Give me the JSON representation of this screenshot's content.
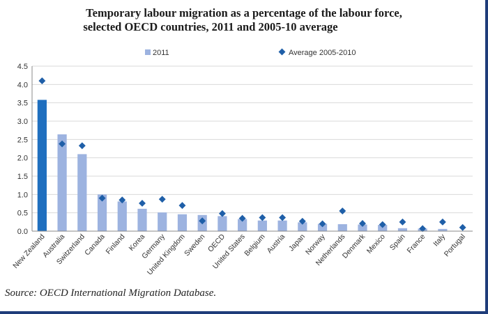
{
  "chart_data": {
    "type": "bar",
    "title_line1": "Temporary labour migration as a percentage of the labour force,",
    "title_line2": "selected OECD countries, 2011 and 2005-10 average",
    "ylim": [
      0,
      4.5
    ],
    "yticks": [
      "0.0",
      "0.5",
      "1.0",
      "1.5",
      "2.0",
      "2.5",
      "3.0",
      "3.5",
      "4.0",
      "4.5"
    ],
    "categories": [
      "New Zealand",
      "Australia",
      "Switzerland",
      "Canada",
      "Finland",
      "Korea",
      "Germany",
      "United Kingdom",
      "Sweden",
      "OECD",
      "United States",
      "Belgium",
      "Austria",
      "Japan",
      "Norway",
      "Netherlands",
      "Denmark",
      "Mexico",
      "Spain",
      "France",
      "Italy",
      "Portugal"
    ],
    "series": [
      {
        "name": "2011",
        "type": "bar",
        "color": "#9db3e0",
        "highlight_color": "#1f6fbf",
        "values": [
          3.58,
          2.64,
          2.1,
          1.0,
          0.81,
          0.61,
          0.51,
          0.46,
          0.44,
          0.41,
          0.33,
          0.29,
          0.29,
          0.24,
          0.2,
          0.19,
          0.18,
          0.17,
          0.08,
          0.07,
          0.06,
          0.0
        ]
      },
      {
        "name": "Average 2005-2010",
        "type": "marker",
        "color": "#1f5fa8",
        "values": [
          4.1,
          2.38,
          2.33,
          0.9,
          0.85,
          0.76,
          0.87,
          0.7,
          0.28,
          0.48,
          0.35,
          0.37,
          0.37,
          0.27,
          0.2,
          0.55,
          0.21,
          0.18,
          0.25,
          0.07,
          0.25,
          0.1
        ]
      }
    ],
    "legend_position": "top-center"
  },
  "source": "Source: OECD International Migration Database."
}
